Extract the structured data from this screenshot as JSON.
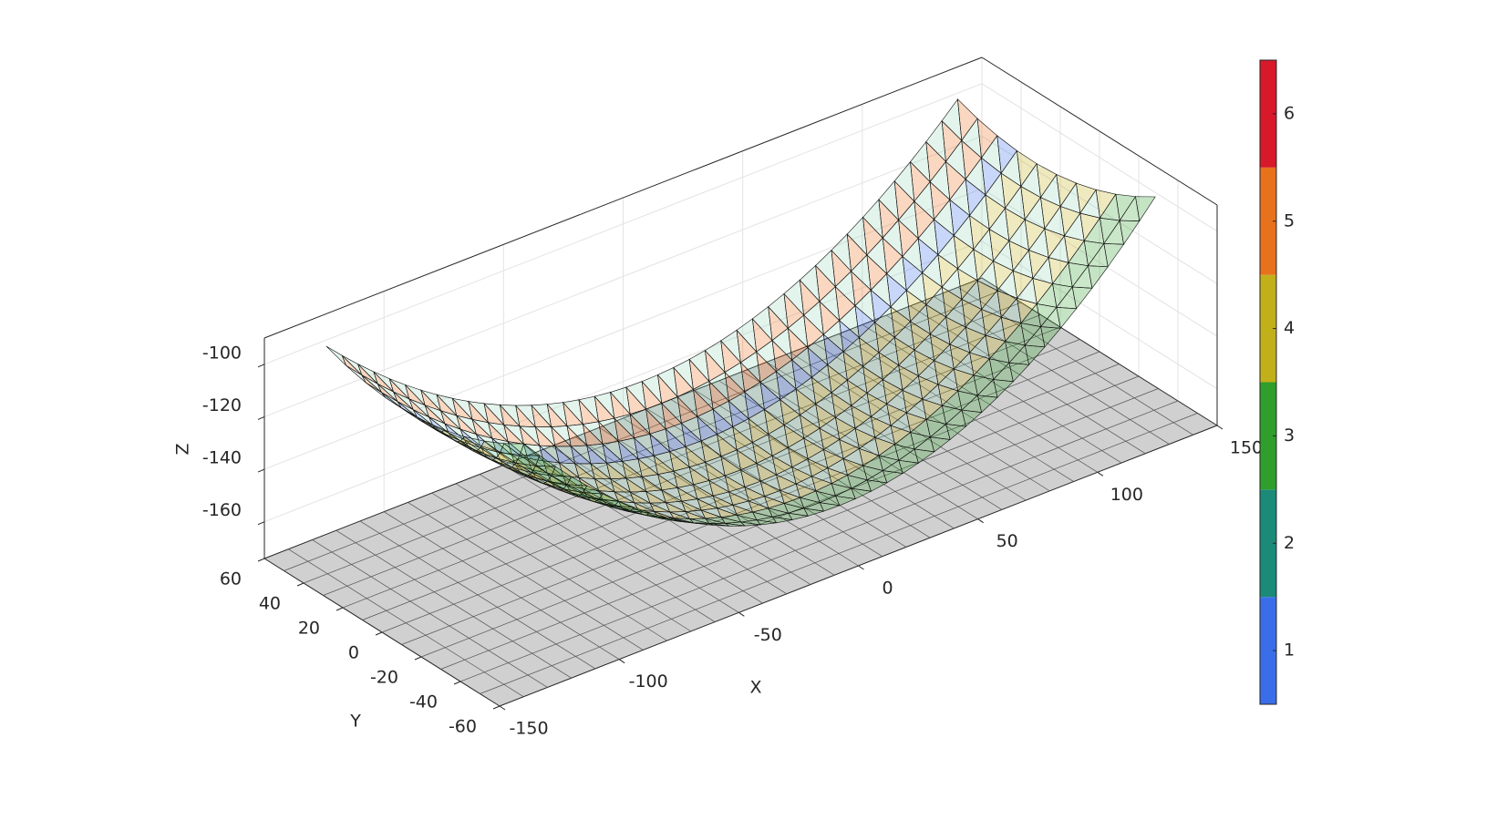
{
  "chart_data": {
    "type": "surface3d",
    "xlabel": "X",
    "ylabel": "Y",
    "zlabel": "Z",
    "xlim": [
      -150,
      150
    ],
    "ylim": [
      -60,
      60
    ],
    "zlim": [
      -174,
      -90
    ],
    "xticks": [
      -150,
      -100,
      -50,
      0,
      50,
      100,
      150
    ],
    "yticks": [
      -60,
      -40,
      -20,
      0,
      20,
      40,
      60
    ],
    "zticks": [
      -160,
      -140,
      -120,
      -100
    ],
    "colorbar": {
      "clim": [
        0.5,
        6.5
      ],
      "levels": [
        1,
        2,
        3,
        4,
        5,
        6
      ],
      "ticks": [
        1,
        2,
        3,
        4,
        5,
        6
      ],
      "colors": [
        "#3a6ee8",
        "#1b8a78",
        "#2f9e2b",
        "#c2b01a",
        "#e8711c",
        "#d7192a"
      ]
    }
  }
}
